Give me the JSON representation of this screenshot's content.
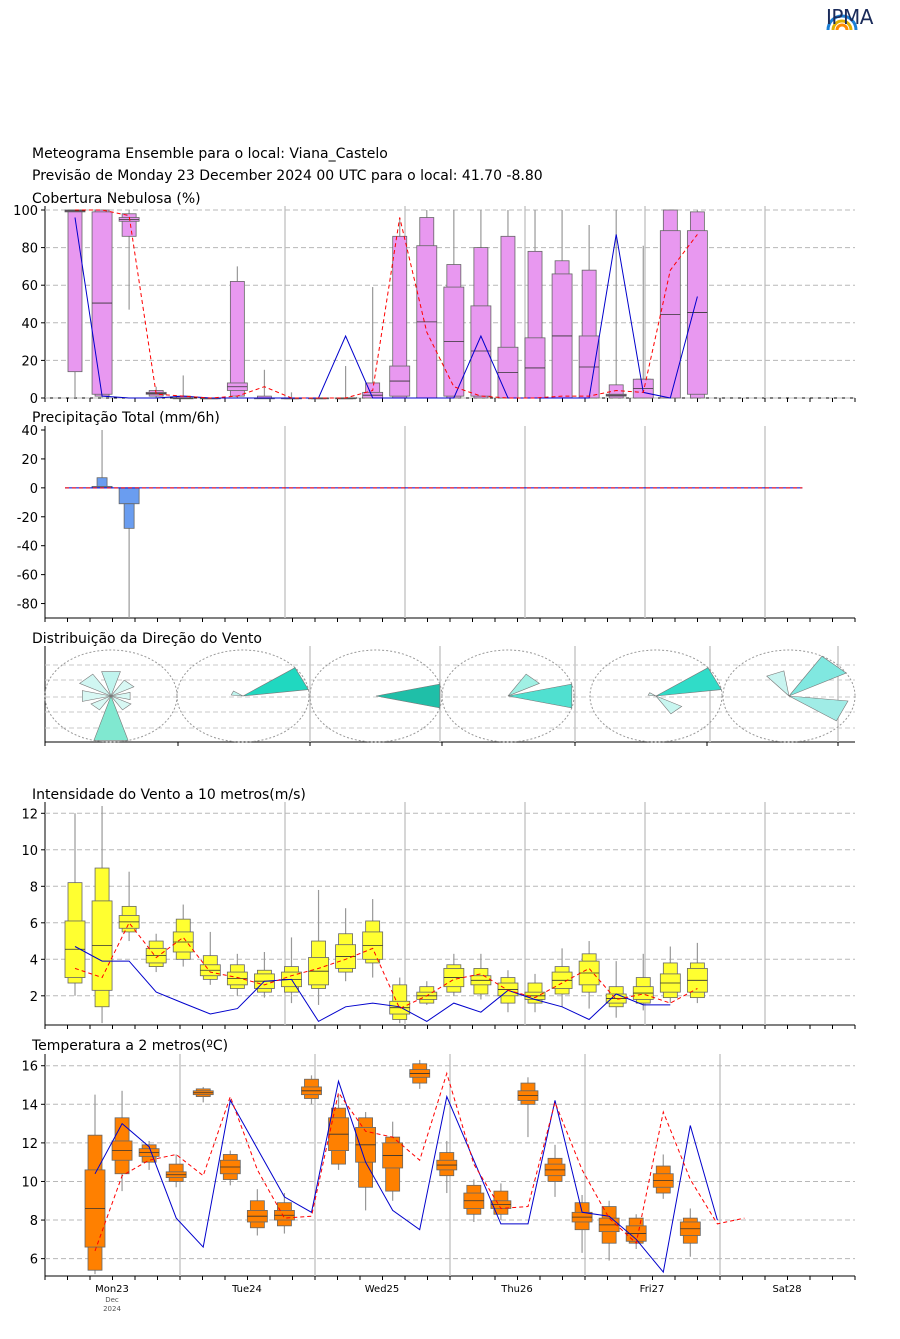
{
  "logo": {
    "text": "IPMA",
    "icon": "rainbow-arc-icon",
    "colors": [
      "#ff8a00",
      "#e0b000",
      "#1a7fd6",
      "#0050a0"
    ]
  },
  "header": {
    "line1": "Meteograma Ensemble para o local: Viana_Castelo",
    "line2": "Previsão de Monday 23 December 2024 00 UTC para o local: 41.70 -8.80"
  },
  "x_axis": {
    "day_labels": [
      "Mon23",
      "Tue24",
      "Wed25",
      "Thu26",
      "Fri27",
      "Sat28"
    ],
    "first_sub": [
      "Dec",
      "2024"
    ],
    "step_hours": 6,
    "start": "2024-12-23 00 UTC"
  },
  "chart_data": [
    {
      "type": "box",
      "title": "Cobertura Nebulosa (%)",
      "ylim": [
        0,
        100
      ],
      "yticks": [
        0,
        20,
        40,
        60,
        80,
        100
      ],
      "grid": true,
      "colors": {
        "box": "#e898f0",
        "median_line": "#0000cc",
        "mean_line": "#ff0000"
      },
      "x_hours": [
        0,
        6,
        12,
        18,
        24,
        30,
        36,
        42,
        48,
        54,
        60,
        66,
        72,
        78,
        84,
        90,
        96,
        102,
        108,
        114,
        120,
        126,
        132,
        138
      ],
      "whisker_low": [
        0,
        0,
        47,
        0,
        0,
        0,
        0,
        0,
        0,
        0,
        0,
        0,
        0,
        0,
        0,
        0,
        0,
        0,
        0,
        0,
        0,
        0,
        0,
        0
      ],
      "q1": [
        14,
        1,
        86,
        1,
        0,
        0,
        1,
        0,
        0,
        0,
        0,
        0,
        0,
        0,
        0,
        0,
        0,
        0,
        0,
        0,
        0,
        0,
        0,
        0
      ],
      "q2": [
        99,
        2,
        94,
        2,
        0,
        0,
        4,
        0,
        0,
        0,
        0,
        0,
        1,
        0,
        1,
        1,
        0,
        0,
        0,
        0,
        1,
        0,
        0,
        2
      ],
      "q3": [
        100,
        99,
        96,
        3,
        0,
        0,
        8,
        0,
        0,
        0,
        0,
        3,
        17,
        81,
        59,
        49,
        27,
        32,
        66,
        33,
        2,
        10,
        89,
        89
      ],
      "q4": [
        100,
        100,
        98,
        4,
        1,
        0,
        62,
        1,
        0,
        0,
        0,
        8,
        86,
        96,
        71,
        80,
        86,
        78,
        73,
        68,
        7,
        10,
        100,
        99
      ],
      "whisker_high": [
        100,
        100,
        100,
        6,
        12,
        0,
        70,
        15,
        3,
        0,
        17,
        59,
        95,
        100,
        100,
        100,
        100,
        100,
        100,
        92,
        100,
        81,
        100,
        100
      ],
      "median": [
        96,
        1,
        0,
        0,
        1,
        0,
        0,
        0,
        0,
        0,
        33,
        0,
        0,
        0,
        0,
        33,
        0,
        0,
        0,
        0,
        87,
        3,
        0,
        54
      ],
      "mean": [
        100,
        100,
        97,
        2,
        1,
        0,
        1,
        6,
        0,
        0,
        0,
        4,
        96,
        35,
        6,
        1,
        0,
        0,
        1,
        1,
        4,
        3,
        68,
        87
      ]
    },
    {
      "type": "box",
      "title": "Precipitação Total (mm/6h)",
      "ylim": [
        -90,
        40
      ],
      "yticks": [
        -80,
        -60,
        -40,
        -20,
        0,
        20,
        40
      ],
      "grid": false,
      "colors": {
        "box_pos": "#6a9df0",
        "box_neg": "#6a9df0",
        "median_line": "#0000cc",
        "mean_line": "#ff0000"
      },
      "positive": {
        "x_hours": [
          6
        ],
        "q3": [
          1
        ],
        "q4": [
          7
        ],
        "whisker_high": [
          40
        ]
      },
      "negative": {
        "x_hours": [
          12
        ],
        "q3": [
          -11
        ],
        "q4": [
          -28
        ],
        "whisker_low": [
          -90
        ]
      },
      "line_x_hours": [
        0,
        138
      ],
      "median": [
        0,
        0
      ],
      "mean": [
        0,
        0
      ]
    },
    {
      "type": "wind-rose",
      "title": "Distribuição da Direção do Vento",
      "days": [
        "Mon23",
        "Tue24",
        "Wed25",
        "Thu26",
        "Fri27",
        "Sat28"
      ],
      "sectors": [
        [
          {
            "dir": 180,
            "len": 1.0,
            "color": "#80e8d0"
          },
          {
            "dir": 0,
            "len": 0.55,
            "color": "#c0f4ee"
          },
          {
            "dir": 315,
            "len": 0.55,
            "color": "#d0f6f2"
          },
          {
            "dir": 270,
            "len": 0.45,
            "color": "#d8f8f4"
          },
          {
            "dir": 45,
            "len": 0.4,
            "color": "#d8f8f4"
          },
          {
            "dir": 135,
            "len": 0.35,
            "color": "#d8f8f4"
          },
          {
            "dir": 225,
            "len": 0.35,
            "color": "#d8f8f4"
          },
          {
            "dir": 90,
            "len": 0.3,
            "color": "#d8f8f4"
          }
        ],
        [
          {
            "dir": 67,
            "len": 1.0,
            "color": "#20d8c0"
          },
          {
            "dir": 292,
            "len": 0.18,
            "color": "#c0f4ee"
          }
        ],
        [
          {
            "dir": 90,
            "len": 1.0,
            "color": "#1fbfa8"
          }
        ],
        [
          {
            "dir": 90,
            "len": 1.0,
            "color": "#50e0d0"
          },
          {
            "dir": 45,
            "len": 0.55,
            "color": "#a0f0e4"
          }
        ],
        [
          {
            "dir": 67,
            "len": 1.0,
            "color": "#30dcc8"
          },
          {
            "dir": 135,
            "len": 0.45,
            "color": "#c8f6f0"
          },
          {
            "dir": 292,
            "len": 0.12,
            "color": "#d8f8f4"
          }
        ],
        [
          {
            "dir": 45,
            "len": 1.0,
            "color": "#80e8e0"
          },
          {
            "dir": 112,
            "len": 0.9,
            "color": "#a0ece6"
          },
          {
            "dir": 337,
            "len": 0.55,
            "color": "#c8f4f0"
          }
        ]
      ]
    },
    {
      "type": "box",
      "title": "Intensidade do Vento a 10 metros(m/s)",
      "ylim": [
        0.4,
        12.4
      ],
      "yticks": [
        2,
        4,
        6,
        8,
        10,
        12
      ],
      "grid": true,
      "colors": {
        "box": "#ffff30",
        "median_line": "#0000cc",
        "mean_line": "#ff0000"
      },
      "x_hours": [
        0,
        6,
        12,
        18,
        24,
        30,
        36,
        42,
        48,
        54,
        60,
        66,
        72,
        78,
        84,
        90,
        96,
        102,
        108,
        114,
        120,
        126,
        132,
        138
      ],
      "whisker_low": [
        2.0,
        0.5,
        5.0,
        3.3,
        3.6,
        2.6,
        2.0,
        1.9,
        1.6,
        1.5,
        2.8,
        3.0,
        0.5,
        1.5,
        2.0,
        1.8,
        1.1,
        1.1,
        1.4,
        1.3,
        0.8,
        1.2,
        1.6,
        1.6
      ],
      "q1": [
        2.7,
        1.4,
        5.5,
        3.6,
        4.0,
        2.9,
        2.4,
        2.2,
        2.2,
        2.4,
        3.3,
        3.8,
        0.7,
        1.6,
        2.2,
        2.1,
        1.6,
        1.6,
        2.1,
        2.2,
        1.4,
        1.6,
        1.9,
        1.9
      ],
      "q2": [
        3.0,
        2.3,
        5.7,
        3.8,
        4.4,
        3.1,
        2.6,
        2.4,
        2.5,
        2.6,
        3.5,
        4.0,
        1.0,
        1.8,
        2.5,
        2.6,
        2.0,
        1.8,
        2.4,
        2.6,
        1.6,
        1.8,
        2.2,
        2.2
      ],
      "q3": [
        6.1,
        7.2,
        6.4,
        4.6,
        5.5,
        3.7,
        3.3,
        3.2,
        3.3,
        4.1,
        4.8,
        5.5,
        1.7,
        2.2,
        3.5,
        3.1,
        2.7,
        2.2,
        3.3,
        3.9,
        2.1,
        2.5,
        3.2,
        3.5
      ],
      "q4": [
        8.2,
        9.0,
        6.9,
        5.0,
        6.2,
        4.2,
        3.7,
        3.4,
        3.6,
        5.0,
        5.4,
        6.1,
        2.6,
        2.5,
        3.7,
        3.5,
        3.0,
        2.7,
        3.6,
        4.3,
        2.5,
        3.0,
        3.8,
        3.8
      ],
      "whisker_high": [
        12.0,
        12.4,
        8.8,
        5.4,
        7.0,
        5.5,
        4.3,
        4.4,
        5.2,
        7.8,
        6.8,
        7.3,
        3.0,
        2.8,
        4.3,
        4.3,
        3.4,
        3.2,
        4.6,
        5.0,
        3.9,
        4.3,
        4.7,
        4.9
      ],
      "median": [
        4.7,
        3.9,
        3.9,
        2.2,
        1.6,
        1.0,
        1.3,
        2.8,
        2.9,
        0.6,
        1.4,
        1.6,
        1.4,
        0.6,
        1.6,
        1.1,
        2.3,
        1.8,
        1.4,
        0.7,
        2.1,
        1.5,
        1.5,
        null
      ],
      "mean": [
        3.5,
        3.0,
        6.0,
        4.1,
        5.2,
        3.3,
        3.0,
        2.6,
        3.1,
        3.5,
        4.0,
        4.6,
        1.3,
        2.0,
        2.9,
        3.2,
        2.3,
        1.9,
        2.7,
        3.5,
        1.8,
        2.1,
        1.6,
        2.4
      ]
    },
    {
      "type": "box",
      "title": "Temperatura a 2 metros(ºC)",
      "ylim": [
        5.1,
        16.4
      ],
      "yticks": [
        6,
        8,
        10,
        12,
        14,
        16
      ],
      "grid": true,
      "colors": {
        "box": "#ff8000",
        "median_line": "#0000cc",
        "mean_line": "#ff0000"
      },
      "x_hours": [
        0,
        6,
        12,
        18,
        24,
        30,
        36,
        42,
        48,
        54,
        60,
        66,
        72,
        78,
        84,
        90,
        96,
        102,
        108,
        114,
        120,
        126,
        132,
        138,
        144
      ],
      "whisker_low": [
        5.2,
        9.5,
        10.6,
        9.7,
        14.1,
        9.8,
        7.2,
        7.3,
        14.0,
        10.6,
        8.5,
        9.0,
        14.8,
        9.4,
        7.9,
        8.0,
        12.3,
        9.2,
        6.3,
        5.9,
        6.5,
        9.1,
        6.1,
        null,
        null
      ],
      "q1": [
        5.4,
        10.4,
        11.0,
        10.0,
        14.4,
        10.1,
        7.6,
        7.7,
        14.3,
        10.9,
        9.7,
        9.5,
        15.1,
        10.3,
        8.3,
        8.3,
        14.0,
        10.0,
        7.5,
        6.8,
        6.8,
        9.4,
        6.8,
        null,
        null
      ],
      "q2": [
        6.6,
        11.1,
        11.3,
        10.2,
        14.5,
        10.4,
        7.9,
        8.0,
        14.5,
        11.6,
        11.0,
        10.7,
        15.4,
        10.6,
        8.6,
        8.6,
        14.2,
        10.3,
        7.9,
        7.4,
        6.9,
        9.7,
        7.2,
        null,
        null
      ],
      "q3": [
        10.6,
        12.1,
        11.7,
        10.5,
        14.7,
        11.1,
        8.5,
        8.5,
        14.9,
        13.3,
        12.8,
        12.0,
        15.8,
        11.1,
        9.4,
        9.0,
        14.7,
        10.9,
        8.4,
        8.1,
        7.7,
        10.4,
        7.9,
        null,
        null
      ],
      "q4": [
        12.4,
        13.3,
        11.9,
        10.9,
        14.8,
        11.4,
        9.0,
        8.9,
        15.3,
        13.8,
        13.3,
        12.3,
        16.1,
        11.5,
        9.8,
        9.5,
        15.1,
        11.2,
        8.9,
        8.7,
        8.1,
        10.8,
        8.1,
        null,
        null
      ],
      "whisker_high": [
        14.5,
        14.7,
        12.1,
        11.4,
        14.9,
        11.6,
        9.6,
        9.4,
        15.5,
        14.5,
        13.6,
        13.1,
        16.3,
        12.1,
        10.1,
        9.9,
        15.4,
        11.9,
        9.3,
        9.0,
        8.3,
        11.4,
        8.6,
        null,
        null
      ],
      "median": [
        10.4,
        13.0,
        11.8,
        8.1,
        6.6,
        14.2,
        11.7,
        9.2,
        8.4,
        15.2,
        11.0,
        8.5,
        7.5,
        14.4,
        11.1,
        7.8,
        7.8,
        14.2,
        8.4,
        8.2,
        7.0,
        5.3,
        12.9,
        8.0,
        null
      ],
      "mean": [
        6.4,
        10.3,
        11.1,
        11.4,
        10.3,
        14.4,
        10.6,
        8.1,
        8.2,
        14.6,
        12.6,
        12.3,
        11.1,
        15.6,
        10.9,
        8.6,
        8.7,
        14.1,
        10.6,
        8.1,
        6.8,
        13.6,
        10.1,
        7.8,
        8.1
      ]
    }
  ]
}
